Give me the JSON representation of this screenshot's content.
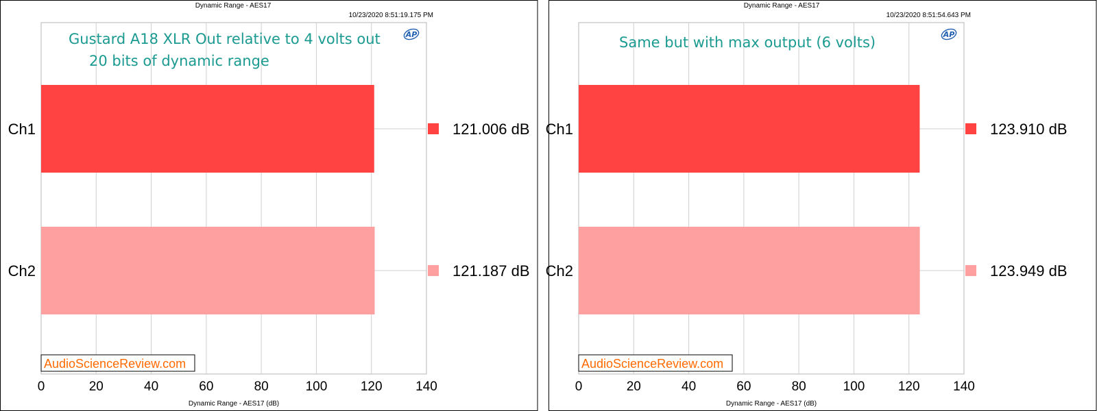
{
  "colors": {
    "ch1": "#ff4343",
    "ch2": "#ffa0a0",
    "annotation": "#1a9a90",
    "watermark": "#ff6a00",
    "grid": "#cfcfcf",
    "logo": "#1f5fb0"
  },
  "icons": {
    "logo": "ap-logo-icon"
  },
  "chart_data": [
    {
      "type": "bar",
      "orientation": "horizontal",
      "title": "Dynamic Range - AES17",
      "timestamp": "10/23/2020 8:51:19.175 PM",
      "annotation": [
        "Gustard A18 XLR Out relative to 4 volts out",
        "20 bits of dynamic range"
      ],
      "categories": [
        "Ch1",
        "Ch2"
      ],
      "values": [
        121.006,
        121.187
      ],
      "value_labels": [
        "121.006  dB",
        "121.187  dB"
      ],
      "xlabel": "Dynamic Range - AES17 (dB)",
      "xlim": [
        0,
        140
      ],
      "xticks": [
        "0",
        "20",
        "40",
        "60",
        "80",
        "100",
        "120",
        "140"
      ],
      "watermark": "AudioScienceReview.com",
      "logo": "AP",
      "grid": true
    },
    {
      "type": "bar",
      "orientation": "horizontal",
      "title": "Dynamic Range - AES17",
      "timestamp": "10/23/2020 8:51:54.643 PM",
      "annotation": [
        "Same but with max output (6 volts)"
      ],
      "categories": [
        "Ch1",
        "Ch2"
      ],
      "values": [
        123.91,
        123.949
      ],
      "value_labels": [
        "123.910  dB",
        "123.949  dB"
      ],
      "xlabel": "Dynamic Range - AES17 (dB)",
      "xlim": [
        0,
        140
      ],
      "xticks": [
        "0",
        "20",
        "40",
        "60",
        "80",
        "100",
        "120",
        "140"
      ],
      "watermark": "AudioScienceReview.com",
      "logo": "AP",
      "grid": true
    }
  ]
}
